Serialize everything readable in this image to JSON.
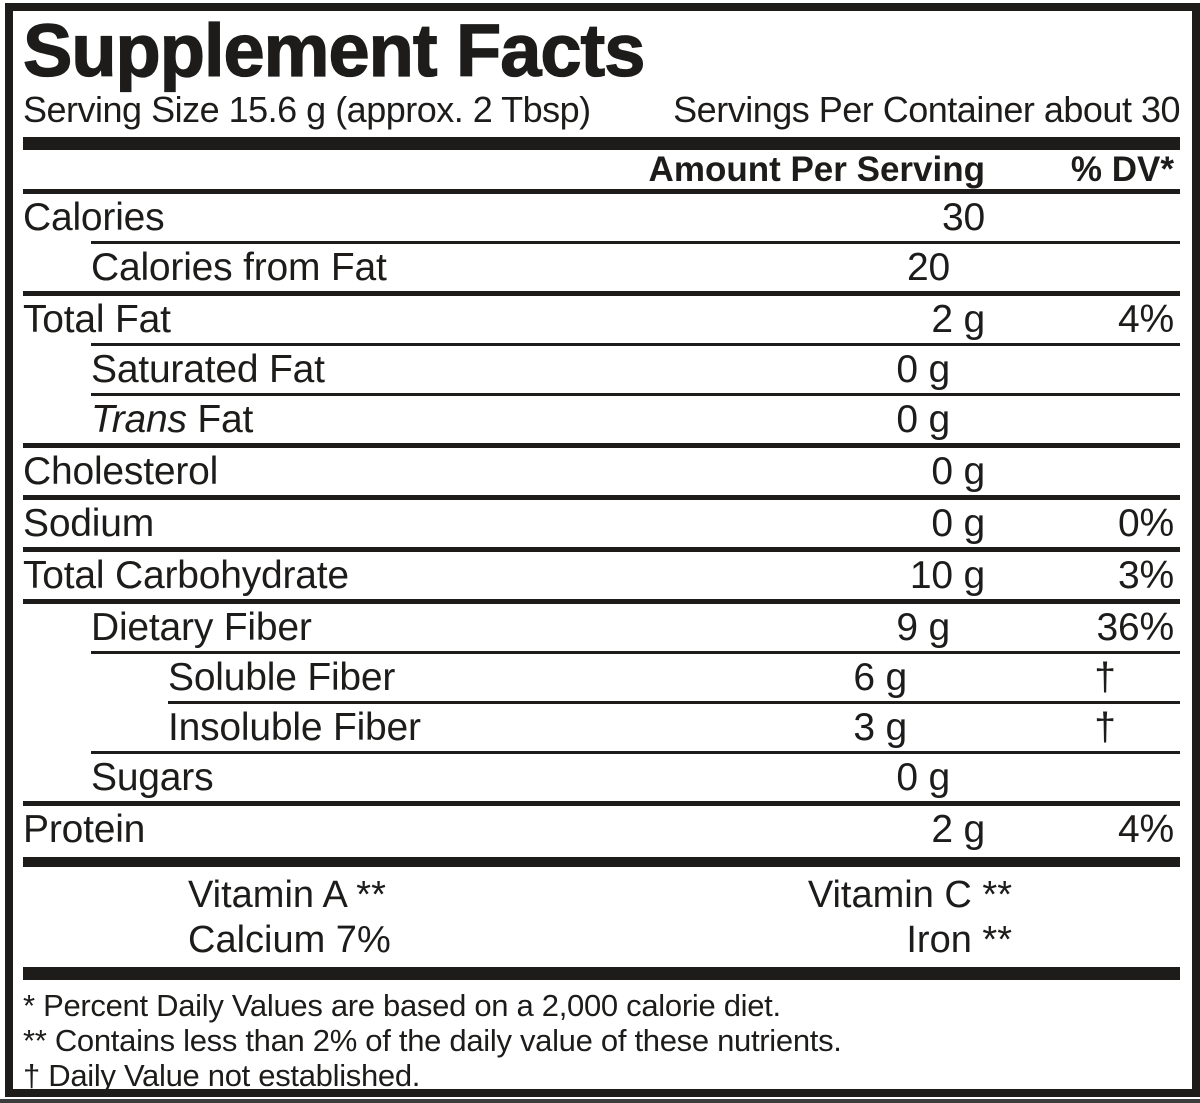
{
  "title": "Supplement Facts",
  "serving": {
    "size": "Serving Size 15.6 g (approx. 2 Tbsp)",
    "per_container": "Servings Per Container about 30"
  },
  "header": {
    "amount": "Amount Per Serving",
    "dv": "% DV*"
  },
  "rows": [
    {
      "label": "Calories",
      "amount": "30",
      "dv": ""
    },
    {
      "label": "Calories from Fat",
      "amount": "20",
      "dv": ""
    },
    {
      "label": "Total Fat",
      "amount": "2 g",
      "dv": "4%"
    },
    {
      "label": "Saturated Fat",
      "amount": "0 g",
      "dv": ""
    },
    {
      "label_italic": "Trans",
      "label": " Fat",
      "amount": "0 g",
      "dv": ""
    },
    {
      "label": "Cholesterol",
      "amount": "0 g",
      "dv": ""
    },
    {
      "label": "Sodium",
      "amount": "0 g",
      "dv": "0%"
    },
    {
      "label": "Total Carbohydrate",
      "amount": "10 g",
      "dv": "3%"
    },
    {
      "label": "Dietary Fiber",
      "amount": "9 g",
      "dv": "36%"
    },
    {
      "label": "Soluble Fiber",
      "amount": "6 g",
      "dv": "†"
    },
    {
      "label": "Insoluble Fiber",
      "amount": "3 g",
      "dv": "†"
    },
    {
      "label": "Sugars",
      "amount": "0 g",
      "dv": ""
    },
    {
      "label": "Protein",
      "amount": "2 g",
      "dv": "4%"
    }
  ],
  "micronutrients": [
    {
      "left": "Vitamin A **",
      "right": "Vitamin C **"
    },
    {
      "left": "Calcium 7%",
      "right": "Iron **"
    }
  ],
  "footnotes": [
    "* Percent Daily Values are based on a 2,000 calorie diet.",
    "** Contains less than 2% of the daily value of these nutrients.",
    "† Daily Value not established."
  ],
  "colors": {
    "ink": "#1d1c1a",
    "background": "#ffffff"
  }
}
